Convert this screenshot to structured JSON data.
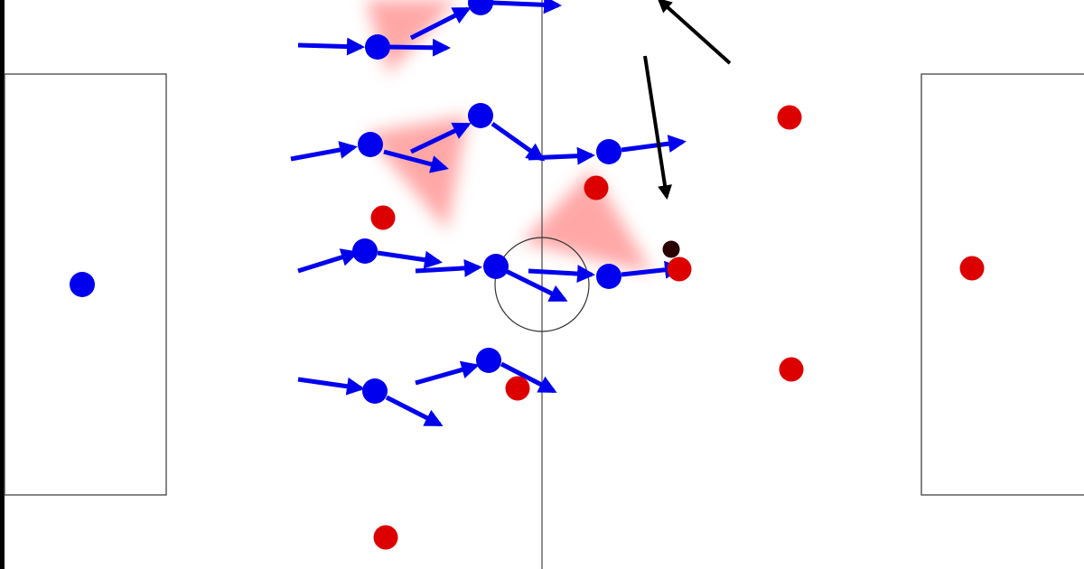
{
  "diagram": {
    "kind": "football-tactics-board",
    "colors": {
      "team_blue": "#0000ee",
      "team_red": "#dd0000",
      "ball": "#2a0000",
      "zone": "#ff8a8a",
      "movement_arrow_blue": "#0000ee",
      "movement_arrow_black": "#000000",
      "pitch_line": "#555555",
      "pitch": "#ffffff"
    },
    "legend": []
  }
}
